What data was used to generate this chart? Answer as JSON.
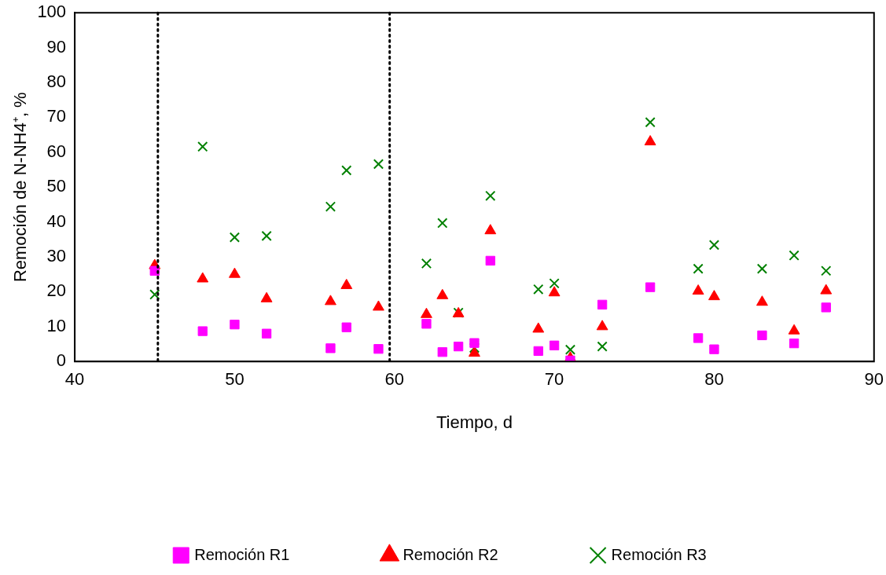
{
  "chart_data": {
    "type": "scatter",
    "xlabel": "Tiempo, d",
    "ylabel": "Remoción de N-NH4⁺, %",
    "x": [
      45,
      48,
      50,
      52,
      56,
      57,
      59,
      62,
      63,
      64,
      65,
      66,
      69,
      70,
      71,
      73,
      76,
      79,
      80,
      83,
      85,
      87
    ],
    "series": [
      {
        "name": "Remoción R1",
        "color": "#ff00ff",
        "marker": "square",
        "values": [
          26,
          8.7,
          10.6,
          8,
          3.8,
          9.8,
          3.6,
          10.8,
          2.7,
          4.3,
          5.3,
          28.9,
          3,
          4.6,
          0.3,
          16.3,
          21.3,
          6.7,
          3.5,
          7.5,
          5.2,
          15.5
        ]
      },
      {
        "name": "Remoción R2",
        "color": "#ff0000",
        "marker": "triangle",
        "values": [
          27.5,
          23.7,
          25,
          18,
          17.2,
          21.8,
          15.6,
          13.5,
          18.9,
          13.7,
          2.4,
          37.5,
          9.3,
          19.7,
          1,
          10,
          63,
          20.2,
          18.6,
          17,
          8.8,
          20.3
        ]
      },
      {
        "name": "Remoción R3",
        "color": "#008000",
        "marker": "cross",
        "values": [
          19.2,
          61.6,
          35.6,
          36,
          44.4,
          54.8,
          56.6,
          28.1,
          39.7,
          14,
          3.9,
          47.5,
          20.7,
          22.4,
          3.4,
          4.3,
          68.6,
          26.6,
          33.4,
          26.6,
          30.4,
          26
        ]
      }
    ],
    "xlim": [
      40,
      90
    ],
    "xticks": [
      40,
      50,
      60,
      70,
      80,
      90
    ],
    "ylim": [
      0,
      100
    ],
    "yticks": [
      0,
      10,
      20,
      30,
      40,
      50,
      60,
      70,
      80,
      90,
      100
    ],
    "ref_lines": [
      {
        "axis": "x",
        "value": 45.2,
        "color": "#000000",
        "line_style": "dotted"
      },
      {
        "axis": "x",
        "value": 59.7,
        "color": "#000000",
        "line_style": "dotted"
      }
    ],
    "grid": false,
    "legend": "bottom"
  }
}
